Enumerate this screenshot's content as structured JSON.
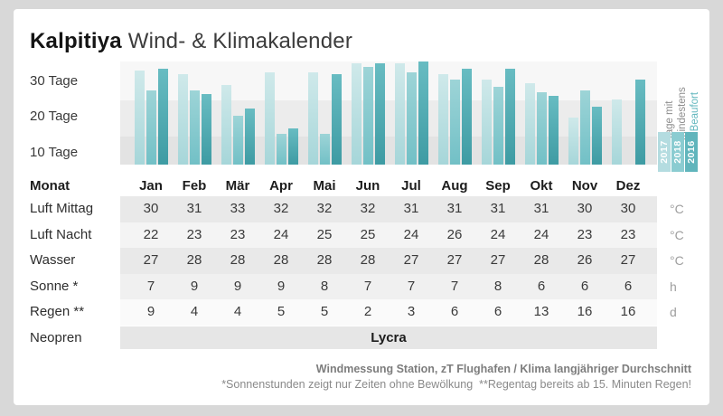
{
  "title": {
    "brand": "Kalpitiya",
    "rest": "Wind- & Klimakalender"
  },
  "chart": {
    "y_axis_labels": [
      "30 Tage",
      "20 Tage",
      "10 Tage"
    ],
    "side_label_lines": [
      "Tage mit",
      "mindestens",
      "4 Beaufort"
    ],
    "side_label_highlight": "4 Beaufort",
    "accent_color": "#5fb6bd",
    "legend_years": [
      {
        "year": "2017",
        "color": "#b4dce0"
      },
      {
        "year": "2018",
        "color": "#8bccd1"
      },
      {
        "year": "2016",
        "color": "#60b5bc"
      }
    ],
    "bar_colors": {
      "2017": {
        "top": "#cfe9ea",
        "bottom": "#a6d6d9"
      },
      "2018": {
        "top": "#9dd4d7",
        "bottom": "#72c0c6"
      },
      "2016": {
        "top": "#68bcc2",
        "bottom": "#3e9ba3"
      }
    }
  },
  "chart_data": {
    "type": "bar",
    "title": "Tage mit mindestens 4 Beaufort",
    "categories": [
      "Jan",
      "Feb",
      "Mär",
      "Apr",
      "Mai",
      "Jun",
      "Jul",
      "Aug",
      "Sep",
      "Okt",
      "Nov",
      "Dez"
    ],
    "series": [
      {
        "name": "2017",
        "values": [
          31,
          30,
          27,
          30.5,
          30.5,
          33,
          33,
          30,
          28.5,
          27.5,
          18,
          23
        ]
      },
      {
        "name": "2018",
        "values": [
          25.5,
          25.5,
          18.5,
          13.5,
          13.5,
          32,
          30.5,
          28.5,
          26.5,
          25,
          25.5,
          null
        ]
      },
      {
        "name": "2016",
        "values": [
          31.5,
          24.5,
          20.5,
          15,
          30,
          33,
          33.5,
          31.5,
          31.5,
          24,
          21,
          28.5
        ]
      }
    ],
    "ylabel": "Tage",
    "y_ticks": [
      10,
      20,
      30
    ],
    "ylim": [
      5,
      33.5
    ],
    "grid": "horizontal-bands",
    "legend_position": "right",
    "note": "Balkenwerte aus Balkenhöhen geschätzt; fehlender Balken Dez 2018"
  },
  "table": {
    "month_header_label": "Monat",
    "rows": [
      {
        "label": "Luft Mittag",
        "values": [
          30,
          31,
          33,
          32,
          32,
          32,
          31,
          31,
          31,
          31,
          30,
          30
        ],
        "unit": "°C"
      },
      {
        "label": "Luft Nacht",
        "values": [
          22,
          23,
          23,
          24,
          25,
          25,
          24,
          26,
          24,
          24,
          23,
          23
        ],
        "unit": "°C"
      },
      {
        "label": "Wasser",
        "values": [
          27,
          28,
          28,
          28,
          28,
          28,
          27,
          27,
          27,
          28,
          26,
          27
        ],
        "unit": "°C"
      },
      {
        "label": "Sonne *",
        "values": [
          7,
          9,
          9,
          9,
          8,
          7,
          7,
          7,
          8,
          6,
          6,
          6
        ],
        "unit": "h"
      },
      {
        "label": "Regen **",
        "values": [
          9,
          4,
          4,
          5,
          5,
          2,
          3,
          6,
          6,
          13,
          16,
          16
        ],
        "unit": "d"
      }
    ],
    "neopren": {
      "label": "Neopren",
      "value": "Lycra"
    }
  },
  "footer": {
    "line1": "Windmessung Station, zT Flughafen / Klima langjähriger Durchschnitt",
    "line2": "*Sonnenstunden zeigt nur Zeiten ohne Bewölkung  **Regentag bereits ab 15. Minuten Regen!"
  }
}
